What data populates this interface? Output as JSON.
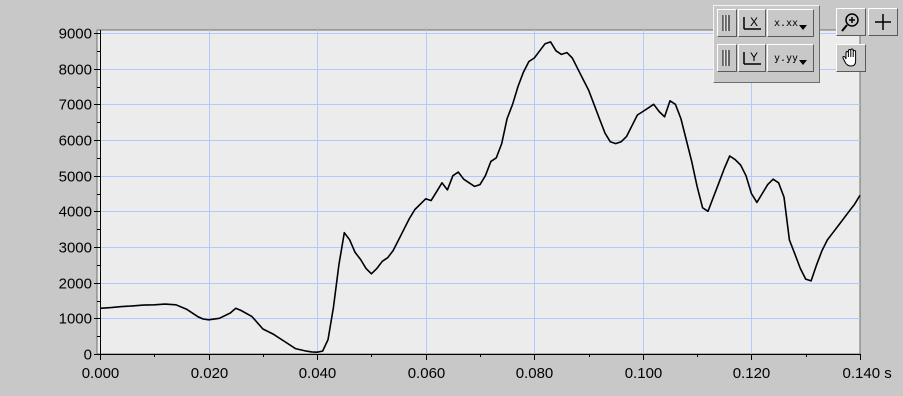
{
  "chart_data": {
    "type": "line",
    "x_unit": "s",
    "xlim": [
      0,
      0.14
    ],
    "ylim": [
      0,
      9000
    ],
    "x_ticks": [
      0,
      0.02,
      0.04,
      0.06,
      0.08,
      0.1,
      0.12,
      0.14
    ],
    "x_tick_labels": [
      "0.000",
      "0.020",
      "0.040",
      "0.060",
      "0.080",
      "0.100",
      "0.120",
      "0.140 s"
    ],
    "y_ticks": [
      0,
      1000,
      2000,
      3000,
      4000,
      5000,
      6000,
      7000,
      8000,
      9000
    ],
    "y_tick_labels": [
      "0",
      "1000",
      "2000",
      "3000",
      "4000",
      "5000",
      "6000",
      "7000",
      "8000",
      "9000"
    ],
    "grid": true,
    "colors": {
      "plot_background": "#ececec",
      "grid": "#b4c8ff",
      "trace": "#000000",
      "panel": "#c8c8c8"
    },
    "series": [
      {
        "x": [
          0,
          0.002,
          0.004,
          0.006,
          0.008,
          0.01,
          0.012,
          0.014,
          0.016,
          0.018,
          0.019,
          0.02,
          0.022,
          0.024,
          0.025,
          0.026,
          0.028,
          0.03,
          0.032,
          0.034,
          0.036,
          0.038,
          0.039,
          0.04,
          0.041,
          0.042,
          0.043,
          0.044,
          0.045,
          0.046,
          0.047,
          0.048,
          0.049,
          0.05,
          0.051,
          0.052,
          0.053,
          0.054,
          0.055,
          0.056,
          0.057,
          0.058,
          0.059,
          0.06,
          0.061,
          0.062,
          0.063,
          0.064,
          0.065,
          0.066,
          0.067,
          0.068,
          0.069,
          0.07,
          0.071,
          0.072,
          0.073,
          0.074,
          0.075,
          0.076,
          0.077,
          0.078,
          0.079,
          0.08,
          0.081,
          0.082,
          0.083,
          0.084,
          0.085,
          0.086,
          0.087,
          0.088,
          0.089,
          0.09,
          0.091,
          0.092,
          0.093,
          0.094,
          0.095,
          0.096,
          0.097,
          0.098,
          0.099,
          0.1,
          0.101,
          0.102,
          0.103,
          0.104,
          0.105,
          0.106,
          0.107,
          0.108,
          0.109,
          0.11,
          0.111,
          0.112,
          0.113,
          0.114,
          0.115,
          0.116,
          0.117,
          0.118,
          0.119,
          0.12,
          0.121,
          0.122,
          0.123,
          0.124,
          0.125,
          0.126,
          0.127,
          0.128,
          0.129,
          0.13,
          0.131,
          0.132,
          0.133,
          0.134,
          0.135,
          0.136,
          0.137,
          0.138,
          0.139,
          0.14
        ],
        "y": [
          1280,
          1300,
          1330,
          1350,
          1370,
          1380,
          1400,
          1380,
          1250,
          1050,
          980,
          960,
          1000,
          1150,
          1280,
          1220,
          1050,
          700,
          550,
          350,
          150,
          80,
          60,
          50,
          80,
          400,
          1300,
          2500,
          3400,
          3200,
          2850,
          2650,
          2400,
          2250,
          2400,
          2600,
          2700,
          2900,
          3200,
          3500,
          3800,
          4050,
          4200,
          4350,
          4300,
          4550,
          4800,
          4600,
          5000,
          5100,
          4900,
          4800,
          4700,
          4750,
          5000,
          5400,
          5500,
          5900,
          6600,
          7000,
          7500,
          7900,
          8200,
          8300,
          8500,
          8700,
          8750,
          8500,
          8400,
          8450,
          8300,
          8000,
          7700,
          7400,
          7000,
          6600,
          6200,
          5950,
          5900,
          5950,
          6100,
          6400,
          6700,
          6800,
          6900,
          7000,
          6800,
          6650,
          7100,
          7000,
          6600,
          6000,
          5400,
          4700,
          4100,
          4000,
          4400,
          4800,
          5200,
          5550,
          5450,
          5300,
          5000,
          4500,
          4250,
          4500,
          4750,
          4900,
          4800,
          4400,
          3200,
          2800,
          2400,
          2100,
          2050,
          2500,
          2900,
          3200,
          3400,
          3600,
          3800,
          4000,
          4200,
          4450
        ]
      }
    ]
  },
  "palette": {
    "x_format": "x.xx",
    "y_format": "y.yy",
    "icons": [
      "x-scale-lock-icon",
      "x-autoscale-icon",
      "y-scale-lock-icon",
      "y-autoscale-icon",
      "zoom-icon",
      "crosshair-cursor-icon",
      "pan-hand-icon"
    ]
  }
}
